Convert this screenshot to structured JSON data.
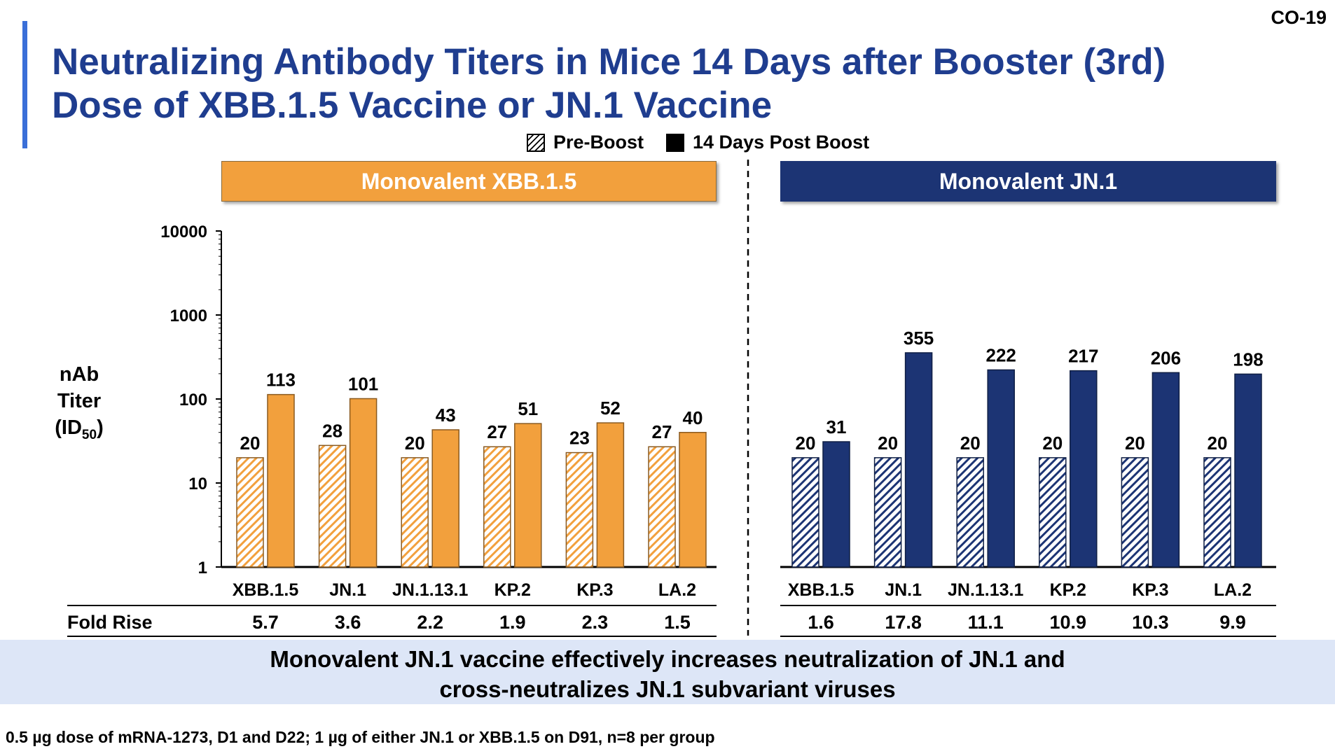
{
  "slide_id": "CO-19",
  "title_lines": [
    "Neutralizing Antibody Titers in Mice 14 Days after Booster (3rd)",
    "Dose of XBB.1.5 Vaccine or JN.1 Vaccine"
  ],
  "legend": {
    "pre": "Pre-Boost",
    "post": "14 Days Post Boost"
  },
  "panels": [
    {
      "title": "Monovalent XBB.1.5"
    },
    {
      "title": "Monovalent JN.1"
    }
  ],
  "y_axis": {
    "line1": "nAb",
    "line2": "Titer",
    "line3": "(ID",
    "sub": "50",
    "line3_end": ")"
  },
  "fold_rise_label": "Fold Rise",
  "conclusion_lines": [
    "Monovalent JN.1 vaccine effectively increases neutralization of JN.1 and",
    "cross-neutralizes JN.1 subvariant viruses"
  ],
  "footnote": "0.5 µg dose of mRNA-1273, D1 and D22; 1 µg of either JN.1 or XBB.1.5 on D91, n=8 per group",
  "colors": {
    "xbb_accent": "#f2a03d",
    "jn_accent": "#1c3474",
    "title": "#1f3d8f"
  },
  "chart_data": [
    {
      "type": "bar",
      "panel": "Monovalent XBB.1.5",
      "y_scale": "log",
      "ylim": [
        1,
        10000
      ],
      "yticks": [
        "1",
        "10",
        "100",
        "1000",
        "10000"
      ],
      "categories": [
        "XBB.1.5",
        "JN.1",
        "JN.1.13.1",
        "KP.2",
        "KP.3",
        "LA.2"
      ],
      "series": [
        {
          "name": "Pre-Boost",
          "values": [
            20,
            28,
            20,
            27,
            23,
            27
          ],
          "labels": [
            "20",
            "28",
            "20",
            "27",
            "23",
            "27"
          ]
        },
        {
          "name": "14 Days Post Boost",
          "values": [
            113,
            101,
            43,
            51,
            52,
            40
          ],
          "labels": [
            "113",
            "101",
            "43",
            "51",
            "52",
            "40"
          ]
        }
      ],
      "fold_rise": [
        "5.7",
        "3.6",
        "2.2",
        "1.9",
        "2.3",
        "1.5"
      ]
    },
    {
      "type": "bar",
      "panel": "Monovalent JN.1",
      "y_scale": "log",
      "ylim": [
        1,
        10000
      ],
      "categories": [
        "XBB.1.5",
        "JN.1",
        "JN.1.13.1",
        "KP.2",
        "KP.3",
        "LA.2"
      ],
      "series": [
        {
          "name": "Pre-Boost",
          "values": [
            20,
            20,
            20,
            20,
            20,
            20
          ],
          "labels": [
            "20",
            "20",
            "20",
            "20",
            "20",
            "20"
          ]
        },
        {
          "name": "14 Days Post Boost",
          "values": [
            31,
            355,
            222,
            217,
            206,
            198
          ],
          "labels": [
            "31",
            "355",
            "222",
            "217",
            "206",
            "198"
          ]
        }
      ],
      "fold_rise": [
        "1.6",
        "17.8",
        "11.1",
        "10.9",
        "10.3",
        "9.9"
      ]
    }
  ]
}
